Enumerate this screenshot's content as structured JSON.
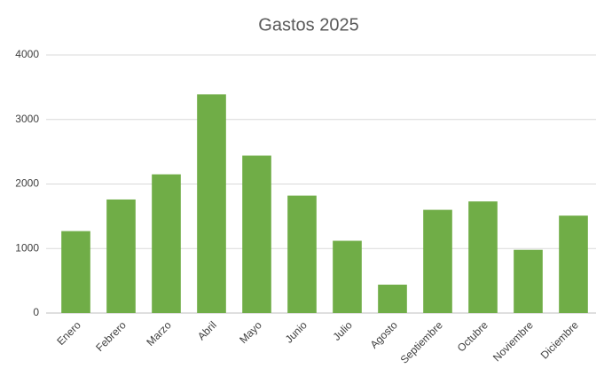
{
  "chart_data": {
    "type": "bar",
    "title": "Gastos 2025",
    "categories": [
      "Enero",
      "Febrero",
      "Marzo",
      "Abril",
      "Mayo",
      "Junio",
      "Julio",
      "Agosto",
      "Septiembre",
      "Octubre",
      "Noviembre",
      "Diciembre"
    ],
    "values": [
      1270,
      1760,
      2150,
      3390,
      2440,
      1820,
      1120,
      440,
      1600,
      1730,
      980,
      1510
    ],
    "color": "#70ad47",
    "ylim": [
      0,
      4000
    ],
    "yticks": [
      0,
      1000,
      2000,
      3000,
      4000
    ],
    "grid": true
  }
}
